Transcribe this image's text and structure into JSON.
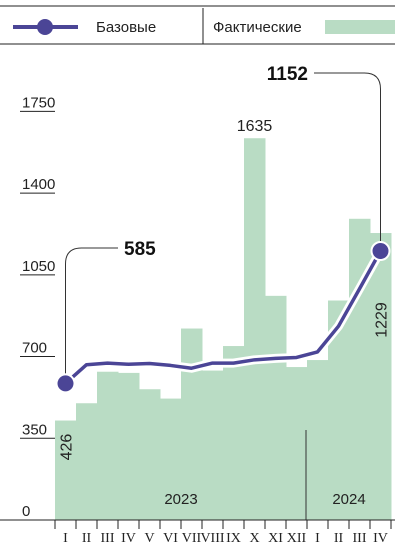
{
  "chart_data": {
    "type": "bar",
    "legend": {
      "baseline_label": "Базовые",
      "actual_label": "Фактические",
      "placement": "top"
    },
    "colors": {
      "baseline_line": "#4b4596",
      "actual_bar": "#b9dcc4",
      "axis": "#222222"
    },
    "y_ticks": [
      "0",
      "350",
      "700",
      "1050",
      "1400",
      "1750"
    ],
    "ylim": [
      0,
      1900
    ],
    "years": [
      {
        "label": "2023",
        "start_index": 0,
        "count": 12
      },
      {
        "label": "2024",
        "start_index": 12,
        "count": 4
      }
    ],
    "categories": [
      "I",
      "II",
      "III",
      "IV",
      "V",
      "VI",
      "VII",
      "VIII",
      "IX",
      "X",
      "XI",
      "XII",
      "I",
      "II",
      "III",
      "IV"
    ],
    "series": [
      {
        "name": "Фактические",
        "kind": "bar",
        "values": [
          426,
          500,
          635,
          630,
          560,
          520,
          820,
          640,
          745,
          1635,
          960,
          655,
          685,
          940,
          1290,
          1229
        ]
      },
      {
        "name": "Базовые",
        "kind": "line",
        "values": [
          585,
          665,
          672,
          667,
          670,
          662,
          650,
          672,
          672,
          686,
          692,
          696,
          720,
          830,
          990,
          1152
        ]
      }
    ],
    "data_labels": [
      {
        "series": "Фактические",
        "index": 0,
        "text": "426",
        "rotated": true
      },
      {
        "series": "Фактические",
        "index": 9,
        "text": "1635",
        "rotated": false
      },
      {
        "series": "Фактические",
        "index": 15,
        "text": "1229",
        "rotated": true
      }
    ],
    "callouts": [
      {
        "series": "Базовые",
        "index": 0,
        "text": "585"
      },
      {
        "series": "Базовые",
        "index": 15,
        "text": "1152"
      }
    ]
  }
}
